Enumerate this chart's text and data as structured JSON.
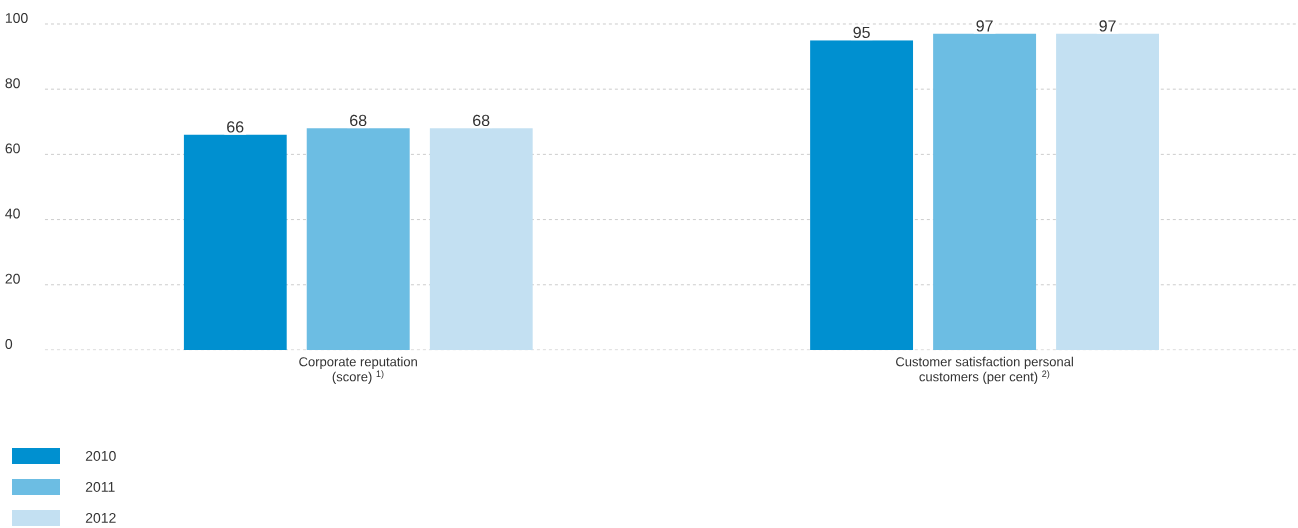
{
  "chart_data": {
    "type": "bar",
    "categories": [
      "Corporate reputation (score) $^{1)}$",
      "Customer satisfaction personal customers (per cent) $^{2)}$"
    ],
    "series": [
      {
        "name": "2010",
        "color": "#0090d0",
        "values": [
          66,
          95
        ]
      },
      {
        "name": "2011",
        "color": "#6cbde3",
        "values": [
          68,
          97
        ]
      },
      {
        "name": "2012",
        "color": "#c3e0f2",
        "values": [
          68,
          97
        ]
      }
    ],
    "ylim": [
      0,
      100
    ],
    "yticks": [
      0,
      20,
      40,
      60,
      80,
      100
    ],
    "grid": "y",
    "legend": "bottom left",
    "data_labels": true
  }
}
